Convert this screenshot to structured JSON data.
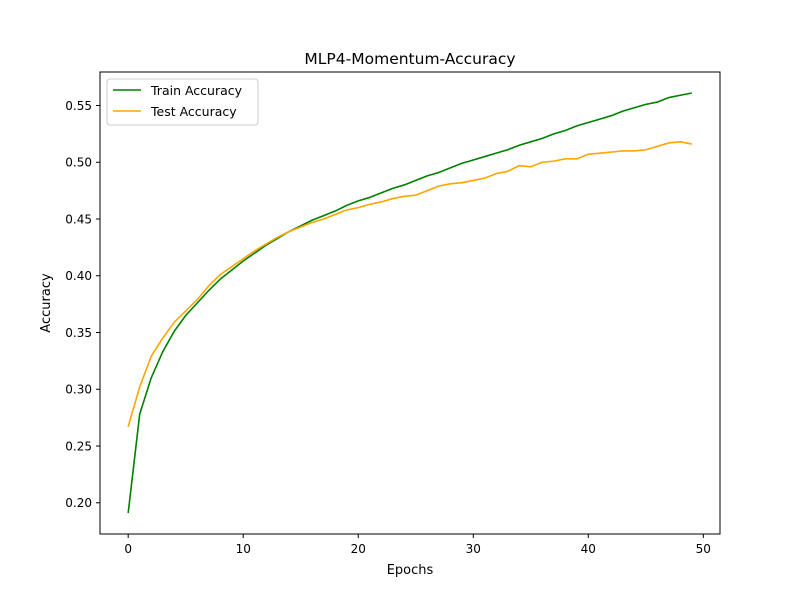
{
  "chart_data": {
    "type": "line",
    "title": "MLP4-Momentum-Accuracy",
    "xlabel": "Epochs",
    "ylabel": "Accuracy",
    "xlim": [
      -2.45,
      51.45
    ],
    "ylim": [
      0.1725,
      0.5795
    ],
    "xticks": [
      0,
      10,
      20,
      30,
      40,
      50
    ],
    "yticks": [
      0.2,
      0.25,
      0.3,
      0.35,
      0.4,
      0.45,
      0.5,
      0.55
    ],
    "ytick_labels": [
      "0.20",
      "0.25",
      "0.30",
      "0.35",
      "0.40",
      "0.45",
      "0.50",
      "0.55"
    ],
    "grid": false,
    "legend_position": "top-left",
    "x": [
      0,
      1,
      2,
      3,
      4,
      5,
      6,
      7,
      8,
      9,
      10,
      11,
      12,
      13,
      14,
      15,
      16,
      17,
      18,
      19,
      20,
      21,
      22,
      23,
      24,
      25,
      26,
      27,
      28,
      29,
      30,
      31,
      32,
      33,
      34,
      35,
      36,
      37,
      38,
      39,
      40,
      41,
      42,
      43,
      44,
      45,
      46,
      47,
      48,
      49
    ],
    "series": [
      {
        "name": "Train Accuracy",
        "color": "#008000",
        "values": [
          0.191,
          0.278,
          0.31,
          0.333,
          0.351,
          0.365,
          0.376,
          0.387,
          0.397,
          0.405,
          0.413,
          0.42,
          0.427,
          0.433,
          0.439,
          0.444,
          0.449,
          0.453,
          0.457,
          0.462,
          0.466,
          0.469,
          0.473,
          0.477,
          0.48,
          0.484,
          0.488,
          0.491,
          0.495,
          0.499,
          0.502,
          0.505,
          0.508,
          0.511,
          0.515,
          0.518,
          0.521,
          0.525,
          0.528,
          0.532,
          0.535,
          0.538,
          0.541,
          0.545,
          0.548,
          0.551,
          0.553,
          0.557,
          0.559,
          0.561
        ]
      },
      {
        "name": "Test Accuracy",
        "color": "#ffa500",
        "values": [
          0.267,
          0.302,
          0.329,
          0.345,
          0.359,
          0.369,
          0.379,
          0.391,
          0.401,
          0.408,
          0.415,
          0.422,
          0.428,
          0.434,
          0.439,
          0.443,
          0.447,
          0.45,
          0.454,
          0.458,
          0.46,
          0.463,
          0.465,
          0.468,
          0.47,
          0.471,
          0.475,
          0.479,
          0.481,
          0.482,
          0.484,
          0.486,
          0.49,
          0.492,
          0.497,
          0.496,
          0.5,
          0.501,
          0.503,
          0.503,
          0.507,
          0.508,
          0.509,
          0.51,
          0.51,
          0.511,
          0.514,
          0.517,
          0.518,
          0.516
        ]
      }
    ]
  }
}
